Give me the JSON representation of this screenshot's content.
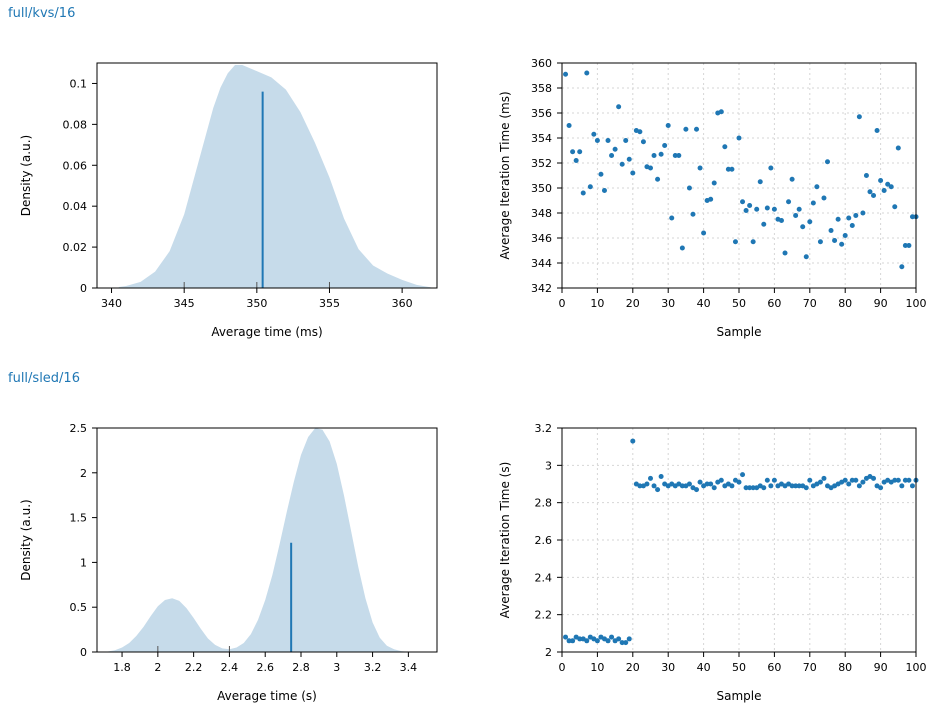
{
  "benchmarks": [
    {
      "title": "full/kvs/16"
    },
    {
      "title": "full/sled/16"
    }
  ],
  "colors": {
    "accent": "#1f77b4",
    "density_fill": "#c6dbea",
    "grid": "#d6d6d6",
    "title": "#1f77b4"
  },
  "chart_data": [
    {
      "id": "kvs-density",
      "type": "area",
      "xlabel": "Average time (ms)",
      "ylabel": "Density (a.u.)",
      "xlim": [
        339,
        362.4
      ],
      "ylim": [
        0,
        0.11
      ],
      "xticks": [
        340,
        345,
        350,
        355,
        360
      ],
      "yticks": [
        0,
        0.02,
        0.04,
        0.06,
        0.08,
        0.1
      ],
      "curve_x": [
        340.5,
        341,
        342,
        343,
        344,
        345,
        346,
        347,
        347.5,
        348,
        348.5,
        349,
        350,
        351,
        352,
        353,
        354,
        355,
        356,
        357,
        358,
        359,
        360,
        361,
        362
      ],
      "curve_y": [
        0.0005,
        0.001,
        0.003,
        0.008,
        0.018,
        0.036,
        0.062,
        0.088,
        0.098,
        0.105,
        0.109,
        0.109,
        0.106,
        0.103,
        0.097,
        0.086,
        0.071,
        0.054,
        0.034,
        0.019,
        0.011,
        0.007,
        0.004,
        0.0015,
        0.0003
      ],
      "mean": 350.4,
      "mean_density": 0.096,
      "rug_ticks": [
        345,
        350,
        355
      ]
    },
    {
      "id": "kvs-samples",
      "type": "scatter",
      "xlabel": "Sample",
      "ylabel": "Average Iteration Time (ms)",
      "xlim": [
        0,
        100
      ],
      "ylim": [
        342,
        360
      ],
      "xticks": [
        0,
        10,
        20,
        30,
        40,
        50,
        60,
        70,
        80,
        90,
        100
      ],
      "yticks": [
        342,
        344,
        346,
        348,
        350,
        352,
        354,
        356,
        358,
        360
      ],
      "x": [
        1,
        2,
        3,
        4,
        5,
        6,
        7,
        8,
        9,
        10,
        11,
        12,
        13,
        14,
        15,
        16,
        17,
        18,
        19,
        20,
        21,
        22,
        23,
        24,
        25,
        26,
        27,
        28,
        29,
        30,
        31,
        32,
        33,
        34,
        35,
        36,
        37,
        38,
        39,
        40,
        41,
        42,
        43,
        44,
        45,
        46,
        47,
        48,
        49,
        50,
        51,
        52,
        53,
        54,
        55,
        56,
        57,
        58,
        59,
        60,
        61,
        62,
        63,
        64,
        65,
        66,
        67,
        68,
        69,
        70,
        71,
        72,
        73,
        74,
        75,
        76,
        77,
        78,
        79,
        80,
        81,
        82,
        83,
        84,
        85,
        86,
        87,
        88,
        89,
        90,
        91,
        92,
        93,
        94,
        95,
        96,
        97,
        98,
        99,
        100
      ],
      "y": [
        359.1,
        355.0,
        352.9,
        352.2,
        352.9,
        349.6,
        359.2,
        350.1,
        354.3,
        353.8,
        351.1,
        349.8,
        353.8,
        352.6,
        353.1,
        356.5,
        351.9,
        353.8,
        352.3,
        351.2,
        354.6,
        354.5,
        353.7,
        351.7,
        351.6,
        352.6,
        350.7,
        352.7,
        353.4,
        355.0,
        347.6,
        352.6,
        352.6,
        345.2,
        354.7,
        350.0,
        347.9,
        354.7,
        351.6,
        346.4,
        349.0,
        349.1,
        350.4,
        356.0,
        356.1,
        353.3,
        351.5,
        351.5,
        345.7,
        354.0,
        348.9,
        348.2,
        348.6,
        345.7,
        348.3,
        350.5,
        347.1,
        348.4,
        351.6,
        348.3,
        347.5,
        347.4,
        344.8,
        348.9,
        350.7,
        347.8,
        348.3,
        346.9,
        344.5,
        347.3,
        348.8,
        350.1,
        345.7,
        349.2,
        352.1,
        346.6,
        345.8,
        347.5,
        345.5,
        346.2,
        347.6,
        347.0,
        347.8,
        355.7,
        348.0,
        351.0,
        349.7,
        349.4,
        354.6,
        350.6,
        349.8,
        350.3,
        350.1,
        348.5,
        353.2,
        343.7,
        345.4,
        345.4,
        347.7,
        347.7
      ]
    },
    {
      "id": "sled-density",
      "type": "area",
      "xlabel": "Average time (s)",
      "ylabel": "Density (a.u.)",
      "xlim": [
        1.66,
        3.56
      ],
      "ylim": [
        0,
        2.5
      ],
      "xticks": [
        1.8,
        2.0,
        2.2,
        2.4,
        2.6,
        2.8,
        3.0,
        3.2,
        3.4
      ],
      "xticklabels": [
        "1.8",
        "2",
        "2.2",
        "2.4",
        "2.6",
        "2.8",
        "3",
        "3.2",
        "3.4"
      ],
      "yticks": [
        0,
        0.5,
        1.0,
        1.5,
        2.0,
        2.5
      ],
      "yticklabels": [
        "0",
        "0.5",
        "1",
        "1.5",
        "2",
        "2.5"
      ],
      "curve_x": [
        1.72,
        1.76,
        1.8,
        1.84,
        1.88,
        1.92,
        1.96,
        2.0,
        2.04,
        2.08,
        2.12,
        2.16,
        2.2,
        2.24,
        2.28,
        2.32,
        2.36,
        2.4,
        2.44,
        2.48,
        2.52,
        2.56,
        2.6,
        2.64,
        2.68,
        2.72,
        2.76,
        2.8,
        2.84,
        2.88,
        2.92,
        2.96,
        3.0,
        3.04,
        3.08,
        3.12,
        3.16,
        3.2,
        3.24,
        3.28,
        3.32,
        3.36,
        3.4
      ],
      "curve_y": [
        0.005,
        0.02,
        0.05,
        0.1,
        0.18,
        0.28,
        0.4,
        0.51,
        0.58,
        0.6,
        0.57,
        0.49,
        0.38,
        0.26,
        0.15,
        0.08,
        0.04,
        0.03,
        0.05,
        0.1,
        0.2,
        0.36,
        0.58,
        0.86,
        1.2,
        1.56,
        1.9,
        2.2,
        2.4,
        2.5,
        2.48,
        2.35,
        2.1,
        1.75,
        1.35,
        0.95,
        0.6,
        0.33,
        0.16,
        0.07,
        0.03,
        0.01,
        0.002
      ],
      "mean": 2.745,
      "mean_density": 1.22,
      "rug_ticks": [
        2.0,
        2.4
      ]
    },
    {
      "id": "sled-samples",
      "type": "scatter",
      "xlabel": "Sample",
      "ylabel": "Average Iteration Time (s)",
      "xlim": [
        0,
        100
      ],
      "ylim": [
        2,
        3.2
      ],
      "xticks": [
        0,
        10,
        20,
        30,
        40,
        50,
        60,
        70,
        80,
        90,
        100
      ],
      "yticks": [
        2,
        2.2,
        2.4,
        2.6,
        2.8,
        3,
        3.2
      ],
      "yticklabels": [
        "2",
        "2.2",
        "2.4",
        "2.6",
        "2.8",
        "3",
        "3.2"
      ],
      "x": [
        1,
        2,
        3,
        4,
        5,
        6,
        7,
        8,
        9,
        10,
        11,
        12,
        13,
        14,
        15,
        16,
        17,
        18,
        19,
        20,
        21,
        22,
        23,
        24,
        25,
        26,
        27,
        28,
        29,
        30,
        31,
        32,
        33,
        34,
        35,
        36,
        37,
        38,
        39,
        40,
        41,
        42,
        43,
        44,
        45,
        46,
        47,
        48,
        49,
        50,
        51,
        52,
        53,
        54,
        55,
        56,
        57,
        58,
        59,
        60,
        61,
        62,
        63,
        64,
        65,
        66,
        67,
        68,
        69,
        70,
        71,
        72,
        73,
        74,
        75,
        76,
        77,
        78,
        79,
        80,
        81,
        82,
        83,
        84,
        85,
        86,
        87,
        88,
        89,
        90,
        91,
        92,
        93,
        94,
        95,
        96,
        97,
        98,
        99,
        100
      ],
      "y": [
        2.08,
        2.06,
        2.06,
        2.08,
        2.07,
        2.07,
        2.06,
        2.08,
        2.07,
        2.06,
        2.08,
        2.07,
        2.06,
        2.08,
        2.06,
        2.07,
        2.05,
        2.05,
        2.07,
        3.13,
        2.9,
        2.89,
        2.89,
        2.9,
        2.93,
        2.89,
        2.87,
        2.94,
        2.9,
        2.89,
        2.9,
        2.89,
        2.9,
        2.89,
        2.89,
        2.9,
        2.88,
        2.87,
        2.91,
        2.89,
        2.9,
        2.9,
        2.88,
        2.91,
        2.92,
        2.89,
        2.9,
        2.89,
        2.92,
        2.91,
        2.95,
        2.88,
        2.88,
        2.88,
        2.88,
        2.89,
        2.88,
        2.92,
        2.89,
        2.92,
        2.89,
        2.9,
        2.89,
        2.9,
        2.89,
        2.89,
        2.89,
        2.89,
        2.88,
        2.92,
        2.89,
        2.9,
        2.91,
        2.93,
        2.89,
        2.88,
        2.89,
        2.9,
        2.91,
        2.92,
        2.9,
        2.92,
        2.92,
        2.89,
        2.91,
        2.93,
        2.94,
        2.93,
        2.89,
        2.88,
        2.91,
        2.92,
        2.91,
        2.92,
        2.92,
        2.89,
        2.92,
        2.92,
        2.89,
        2.92
      ]
    }
  ]
}
